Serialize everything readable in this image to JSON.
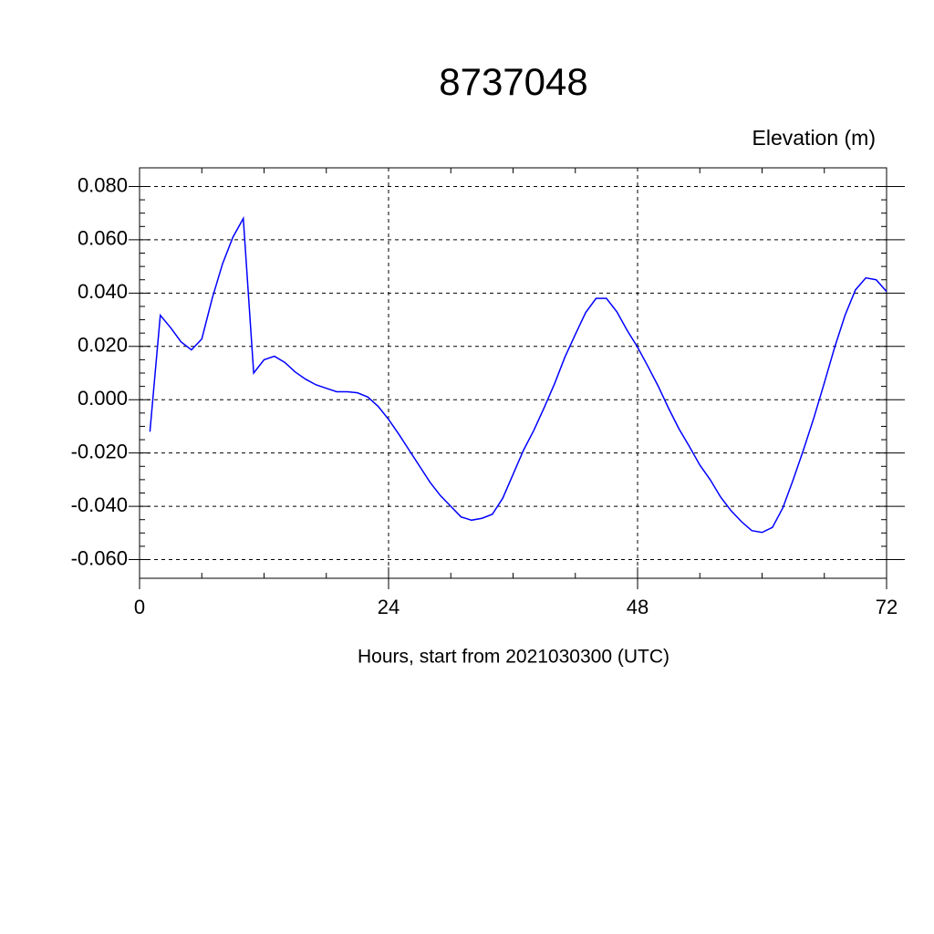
{
  "chart_data": {
    "type": "line",
    "title": "8737048",
    "y_label": "Elevation (m)",
    "x_label": "Hours, start from 2021030300 (UTC)",
    "x": [
      1,
      2,
      3,
      4,
      5,
      6,
      7,
      8,
      9,
      10,
      11,
      12,
      13,
      14,
      15,
      16,
      17,
      18,
      19,
      20,
      21,
      22,
      23,
      24,
      25,
      26,
      27,
      28,
      29,
      30,
      31,
      32,
      33,
      34,
      35,
      36,
      37,
      38,
      39,
      40,
      41,
      42,
      43,
      44,
      45,
      46,
      47,
      48,
      49,
      50,
      51,
      52,
      53,
      54,
      55,
      56,
      57,
      58,
      59,
      60,
      61,
      62,
      63,
      64,
      65,
      66,
      67,
      68,
      69,
      70,
      71,
      72
    ],
    "series": [
      {
        "name": "Elevation",
        "color": "#0000ff",
        "values": [
          -0.012,
          0.0317,
          0.027,
          0.0217,
          0.0187,
          0.0228,
          0.038,
          0.051,
          0.061,
          0.068,
          0.01,
          0.015,
          0.0163,
          0.014,
          0.0104,
          0.0077,
          0.0056,
          0.0043,
          0.003,
          0.003,
          0.0026,
          0.001,
          -0.0025,
          -0.0074,
          -0.013,
          -0.019,
          -0.025,
          -0.031,
          -0.036,
          -0.04,
          -0.044,
          -0.0452,
          -0.0445,
          -0.043,
          -0.037,
          -0.028,
          -0.019,
          -0.0115,
          -0.003,
          0.006,
          0.016,
          0.0245,
          0.0327,
          0.038,
          0.038,
          0.033,
          0.026,
          0.0197,
          0.0125,
          0.005,
          -0.0033,
          -0.011,
          -0.0176,
          -0.0245,
          -0.03,
          -0.0365,
          -0.0416,
          -0.0457,
          -0.0491,
          -0.0498,
          -0.0479,
          -0.0406,
          -0.03,
          -0.0187,
          -0.0067,
          0.0063,
          0.0197,
          0.0317,
          0.0412,
          0.0457,
          0.045,
          0.0406
        ]
      }
    ],
    "xlim": [
      0,
      72
    ],
    "xticks": [
      0,
      24,
      48,
      72
    ],
    "ylim": [
      -0.067,
      0.087
    ],
    "yticks": [
      {
        "value": -0.06,
        "label": "-0.060"
      },
      {
        "value": -0.04,
        "label": "-0.040"
      },
      {
        "value": -0.02,
        "label": "-0.020"
      },
      {
        "value": 0,
        "label": "0.000"
      },
      {
        "value": 0.02,
        "label": "0.020"
      },
      {
        "value": 0.04,
        "label": "0.040"
      },
      {
        "value": 0.06,
        "label": "0.060"
      },
      {
        "value": 0.08,
        "label": "0.080"
      }
    ],
    "grid": true
  }
}
